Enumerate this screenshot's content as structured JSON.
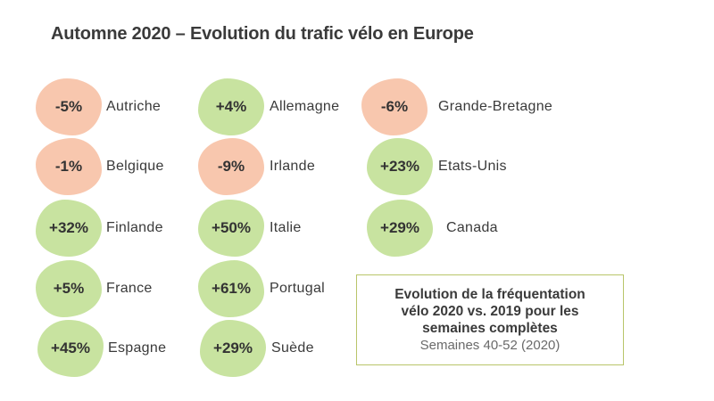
{
  "title": "Automne 2020 – Evolution du trafic vélo en Europe",
  "colors": {
    "negative": "#f8c7ae",
    "positive": "#c8e3a0",
    "legend_border": "#b9c56a"
  },
  "items": [
    {
      "value": "-5%",
      "country": "Autriche",
      "sign": "neg"
    },
    {
      "value": "-1%",
      "country": "Belgique",
      "sign": "neg"
    },
    {
      "value": "+32%",
      "country": "Finlande",
      "sign": "pos"
    },
    {
      "value": "+5%",
      "country": "France",
      "sign": "pos"
    },
    {
      "value": "+45%",
      "country": "Espagne",
      "sign": "pos"
    },
    {
      "value": "+4%",
      "country": "Allemagne",
      "sign": "pos"
    },
    {
      "value": "-9%",
      "country": "Irlande",
      "sign": "neg"
    },
    {
      "value": "+50%",
      "country": "Italie",
      "sign": "pos"
    },
    {
      "value": "+61%",
      "country": "Portugal",
      "sign": "pos"
    },
    {
      "value": "+29%",
      "country": "Suède",
      "sign": "pos"
    },
    {
      "value": "-6%",
      "country": "Grande-Bretagne",
      "sign": "neg"
    },
    {
      "value": "+23%",
      "country": "Etats-Unis",
      "sign": "pos"
    },
    {
      "value": "+29%",
      "country": "Canada",
      "sign": "pos"
    }
  ],
  "legend": {
    "line1": "Evolution de la fréquentation",
    "line2": "vélo 2020 vs. 2019 pour les",
    "line3": "semaines complètes",
    "line4": "Semaines 40-52 (2020)"
  }
}
